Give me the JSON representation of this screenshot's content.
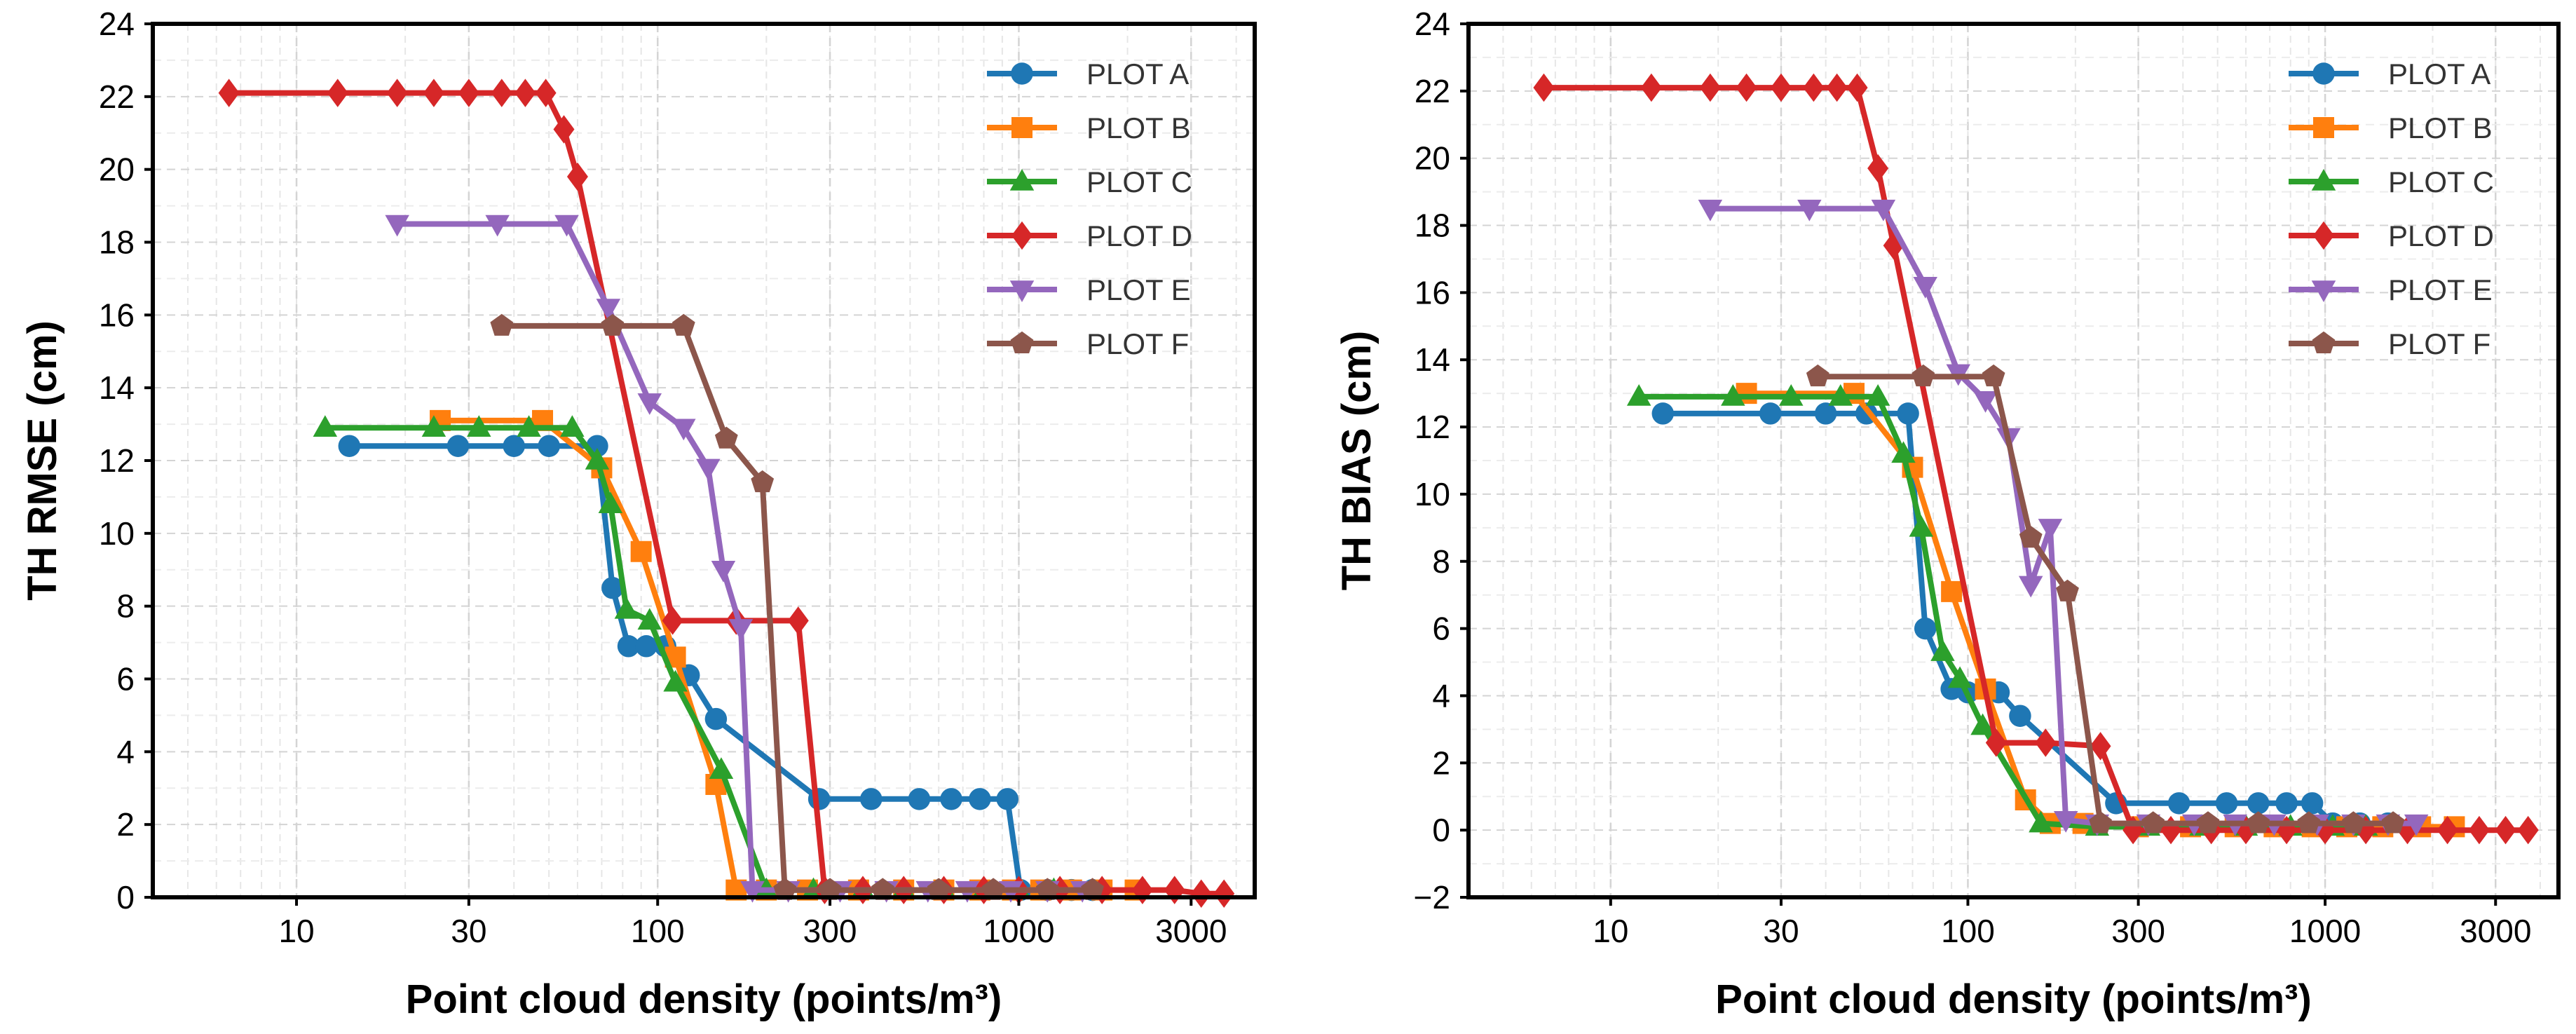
{
  "chart_data": [
    {
      "type": "line",
      "xscale": "log",
      "xlabel": "Point cloud density (points/m³)",
      "ylabel": "TH RMSE (cm)",
      "xlim": [
        4,
        4500
      ],
      "ylim": [
        0,
        24
      ],
      "xticks": [
        10,
        30,
        100,
        300,
        1000,
        3000
      ],
      "xtick_labels": [
        "10",
        "30",
        "100",
        "300",
        "1000",
        "3000"
      ],
      "yticks": [
        0,
        2,
        4,
        6,
        8,
        10,
        12,
        14,
        16,
        18,
        20,
        22,
        24
      ],
      "ytick_labels": [
        "0",
        "2",
        "4",
        "6",
        "8",
        "10",
        "12",
        "14",
        "16",
        "18",
        "20",
        "22",
        "24"
      ],
      "grid": true,
      "legend": "top-right",
      "series": [
        {
          "name": "PLOT A",
          "color": "#1f77b4",
          "marker": "circle",
          "x": [
            14,
            28,
            40,
            50,
            68,
            75,
            83,
            93,
            105,
            122,
            145,
            280,
            390,
            530,
            650,
            780,
            930,
            1010,
            1200,
            1400,
            1600
          ],
          "y": [
            12.4,
            12.4,
            12.4,
            12.4,
            12.4,
            8.5,
            6.9,
            6.9,
            6.9,
            6.1,
            4.9,
            2.7,
            2.7,
            2.7,
            2.7,
            2.7,
            2.7,
            0.2,
            0.2,
            0.2,
            0.2
          ]
        },
        {
          "name": "PLOT B",
          "color": "#ff7f0e",
          "marker": "square",
          "x": [
            25,
            48,
            70,
            90,
            112,
            145,
            165,
            200,
            260,
            360,
            480,
            620,
            780,
            960,
            1150,
            1400,
            1700,
            2100
          ],
          "y": [
            13.1,
            13.1,
            11.8,
            9.5,
            6.6,
            3.1,
            0.2,
            0.2,
            0.2,
            0.2,
            0.2,
            0.2,
            0.2,
            0.2,
            0.2,
            0.2,
            0.2,
            0.2
          ]
        },
        {
          "name": "PLOT C",
          "color": "#2ca02c",
          "marker": "triangle-up",
          "x": [
            12,
            24,
            32,
            44,
            58,
            68,
            74,
            82,
            95,
            112,
            150,
            200,
            270,
            370,
            480,
            620,
            800,
            1000,
            1250
          ],
          "y": [
            12.9,
            12.9,
            12.9,
            12.9,
            12.9,
            12.0,
            10.8,
            7.9,
            7.6,
            5.9,
            3.5,
            0.2,
            0.2,
            0.2,
            0.2,
            0.2,
            0.2,
            0.2,
            0.2
          ]
        },
        {
          "name": "PLOT D",
          "color": "#d62728",
          "marker": "diamond",
          "x": [
            6.5,
            13,
            19,
            24,
            30,
            37,
            43,
            49,
            55,
            60,
            110,
            165,
            245,
            290,
            370,
            480,
            620,
            800,
            1000,
            1300,
            1700,
            2200,
            2700,
            3200,
            3700
          ],
          "y": [
            22.1,
            22.1,
            22.1,
            22.1,
            22.1,
            22.1,
            22.1,
            22.1,
            21.1,
            19.8,
            7.6,
            7.6,
            7.6,
            0.2,
            0.2,
            0.2,
            0.2,
            0.2,
            0.2,
            0.2,
            0.2,
            0.2,
            0.2,
            0.1,
            0.1
          ]
        },
        {
          "name": "PLOT E",
          "color": "#9467bd",
          "marker": "triangle-down",
          "x": [
            19,
            36,
            56,
            73,
            95,
            118,
            138,
            152,
            170,
            183,
            230,
            320,
            430,
            560,
            720,
            950,
            1200,
            1500
          ],
          "y": [
            18.5,
            18.5,
            18.5,
            16.2,
            13.6,
            12.9,
            11.8,
            9.0,
            7.4,
            0.2,
            0.2,
            0.2,
            0.2,
            0.2,
            0.2,
            0.2,
            0.2,
            0.2
          ]
        },
        {
          "name": "PLOT F",
          "color": "#8c564b",
          "marker": "pentagon",
          "x": [
            37,
            75,
            118,
            155,
            195,
            225,
            300,
            420,
            600,
            850,
            1200,
            1600
          ],
          "y": [
            15.7,
            15.7,
            15.7,
            12.6,
            11.4,
            0.2,
            0.2,
            0.2,
            0.2,
            0.2,
            0.2,
            0.2
          ]
        }
      ]
    },
    {
      "type": "line",
      "xscale": "log",
      "xlabel": "Point cloud density (points/m³)",
      "ylabel": "TH BIAS (cm)",
      "xlim": [
        4,
        4500
      ],
      "ylim": [
        -2,
        24
      ],
      "xticks": [
        10,
        30,
        100,
        300,
        1000,
        3000
      ],
      "xtick_labels": [
        "10",
        "30",
        "100",
        "300",
        "1000",
        "3000"
      ],
      "yticks": [
        -2,
        0,
        2,
        4,
        6,
        8,
        10,
        12,
        14,
        16,
        18,
        20,
        22,
        24
      ],
      "ytick_labels": [
        "−2",
        "0",
        "2",
        "4",
        "6",
        "8",
        "10",
        "12",
        "14",
        "16",
        "18",
        "20",
        "22",
        "24"
      ],
      "grid": true,
      "legend": "top-right",
      "series": [
        {
          "name": "PLOT A",
          "color": "#1f77b4",
          "marker": "circle",
          "x": [
            14,
            28,
            40,
            52,
            68,
            76,
            90,
            100,
            122,
            140,
            260,
            390,
            530,
            650,
            780,
            920,
            1050,
            1250,
            1500
          ],
          "y": [
            12.4,
            12.4,
            12.4,
            12.4,
            12.4,
            6.0,
            4.2,
            4.1,
            4.1,
            3.4,
            0.8,
            0.8,
            0.8,
            0.8,
            0.8,
            0.8,
            0.2,
            0.2,
            0.2
          ]
        },
        {
          "name": "PLOT B",
          "color": "#ff7f0e",
          "marker": "square",
          "x": [
            24,
            48,
            70,
            90,
            112,
            145,
            170,
            210,
            300,
            420,
            560,
            720,
            920,
            1150,
            1450,
            1850,
            2300
          ],
          "y": [
            13.0,
            13.0,
            10.8,
            7.1,
            4.2,
            0.9,
            0.2,
            0.2,
            0.1,
            0.1,
            0.1,
            0.1,
            0.1,
            0.1,
            0.1,
            0.1,
            0.1
          ]
        },
        {
          "name": "PLOT C",
          "color": "#2ca02c",
          "marker": "triangle-up",
          "x": [
            12,
            22,
            32,
            44,
            56,
            66,
            74,
            85,
            95,
            110,
            160,
            230,
            320,
            450,
            600,
            800,
            1050,
            1300
          ],
          "y": [
            12.9,
            12.9,
            12.9,
            12.9,
            12.9,
            11.2,
            9.0,
            5.3,
            4.5,
            3.1,
            0.2,
            0.1,
            0.1,
            0.1,
            0.1,
            0.1,
            0.1,
            0.1
          ]
        },
        {
          "name": "PLOT D",
          "color": "#d62728",
          "marker": "diamond",
          "x": [
            6.5,
            13,
            19,
            24,
            30,
            37,
            43,
            49,
            56,
            62,
            120,
            165,
            235,
            290,
            370,
            480,
            600,
            780,
            1000,
            1300,
            1700,
            2200,
            2700,
            3200,
            3700
          ],
          "y": [
            22.1,
            22.1,
            22.1,
            22.1,
            22.1,
            22.1,
            22.1,
            22.1,
            19.7,
            17.4,
            2.6,
            2.6,
            2.5,
            0.0,
            0.0,
            0.0,
            0.0,
            0.0,
            0.0,
            0.0,
            0.0,
            0.0,
            0.0,
            0.0,
            0.0
          ]
        },
        {
          "name": "PLOT E",
          "color": "#9467bd",
          "marker": "triangle-down",
          "x": [
            19,
            36,
            58,
            76,
            94,
            112,
            130,
            150,
            170,
            188,
            230,
            320,
            430,
            560,
            720,
            950,
            1200,
            1500,
            1800
          ],
          "y": [
            18.5,
            18.5,
            18.5,
            16.2,
            13.6,
            12.8,
            11.7,
            7.3,
            9.0,
            0.3,
            0.2,
            0.2,
            0.2,
            0.2,
            0.2,
            0.2,
            0.2,
            0.2,
            0.2
          ]
        },
        {
          "name": "PLOT F",
          "color": "#8c564b",
          "marker": "pentagon",
          "x": [
            38,
            75,
            118,
            150,
            190,
            235,
            330,
            470,
            650,
            900,
            1200,
            1550
          ],
          "y": [
            13.5,
            13.5,
            13.5,
            8.7,
            7.1,
            0.2,
            0.2,
            0.2,
            0.2,
            0.2,
            0.2,
            0.2
          ]
        }
      ]
    }
  ]
}
